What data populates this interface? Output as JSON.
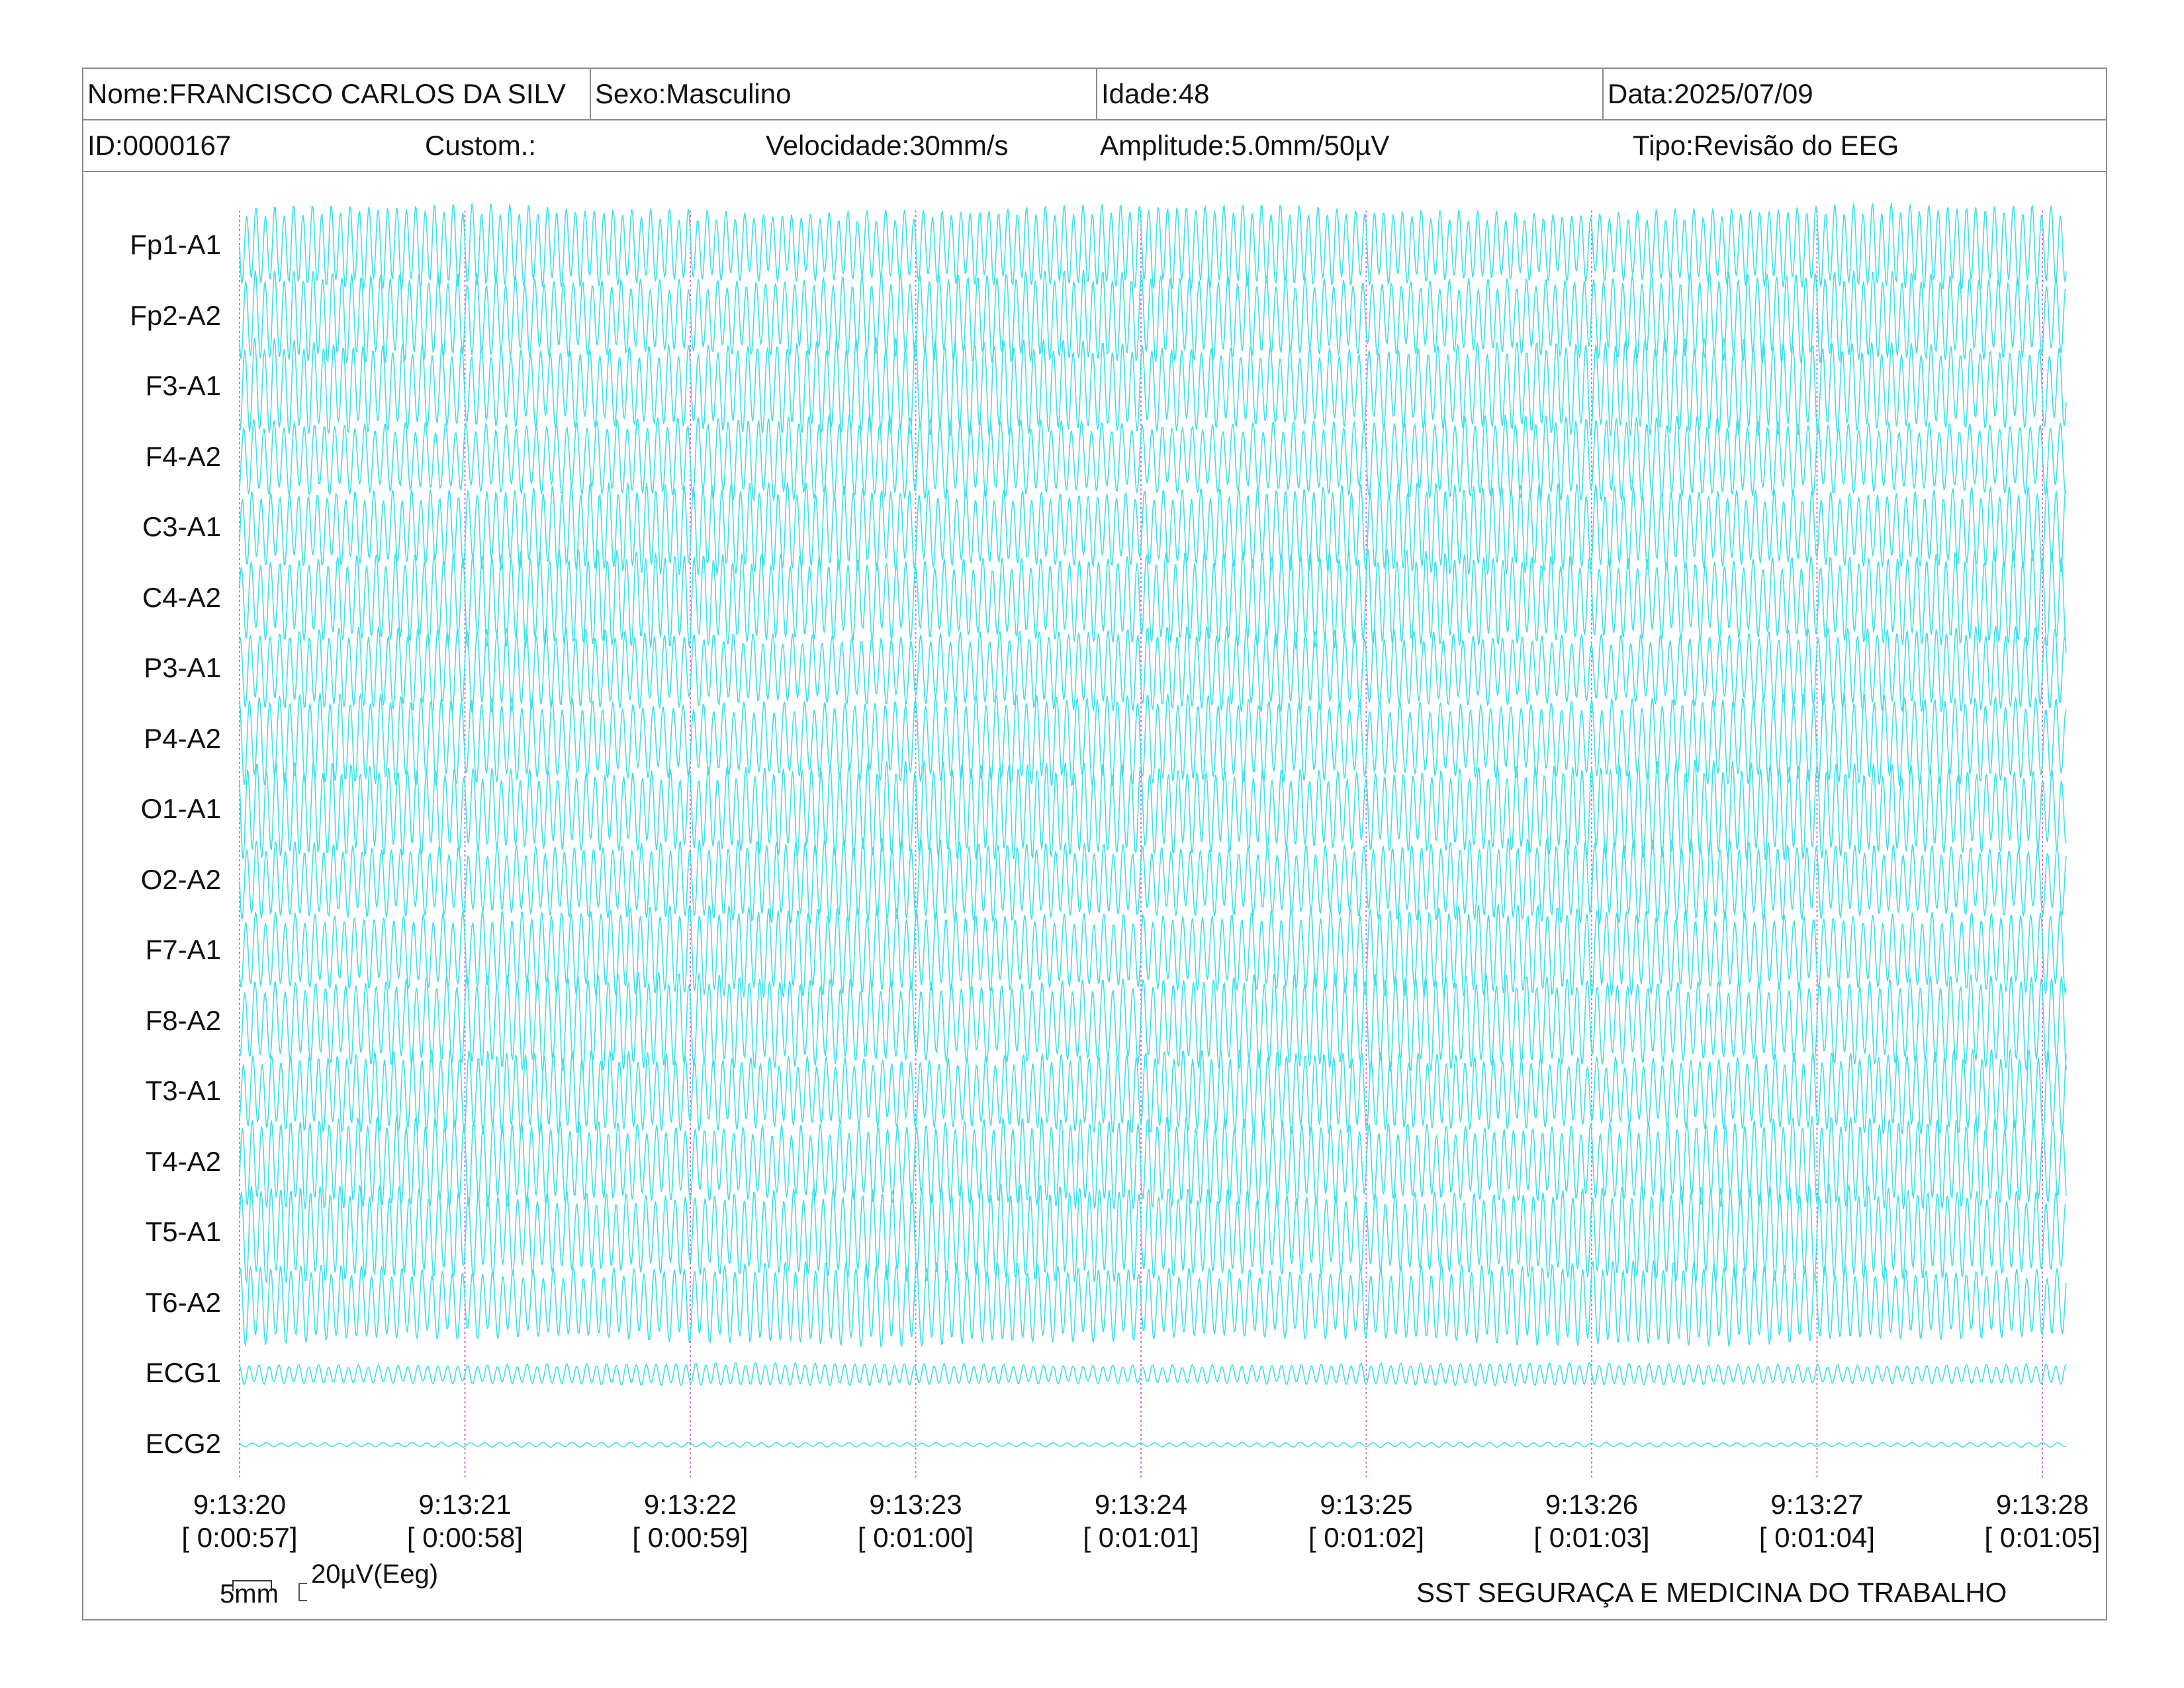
{
  "header": {
    "name": "Nome:FRANCISCO CARLOS DA SILV",
    "sex": "Sexo:Masculino",
    "age": "Idade:48",
    "date": "Data:2025/07/09",
    "id": "ID:0000167",
    "custom": "Custom.:",
    "speed": "Velocidade:30mm/s",
    "amplitude": "Amplitude:5.0mm/50µV",
    "type": "Tipo:Revisão do EEG"
  },
  "channels": [
    "Fp1-A1",
    "Fp2-A2",
    "F3-A1",
    "F4-A2",
    "C3-A1",
    "C4-A2",
    "P3-A1",
    "P4-A2",
    "O1-A1",
    "O2-A2",
    "F7-A1",
    "F8-A2",
    "T3-A1",
    "T4-A2",
    "T5-A1",
    "T6-A2",
    "ECG1",
    "ECG2"
  ],
  "time_marks": [
    {
      "clock": "9:13:20",
      "elapsed": "[ 0:00:57]"
    },
    {
      "clock": "9:13:21",
      "elapsed": "[ 0:00:58]"
    },
    {
      "clock": "9:13:22",
      "elapsed": "[ 0:00:59]"
    },
    {
      "clock": "9:13:23",
      "elapsed": "[ 0:01:00]"
    },
    {
      "clock": "9:13:24",
      "elapsed": "[ 0:01:01]"
    },
    {
      "clock": "9:13:25",
      "elapsed": "[ 0:01:02]"
    },
    {
      "clock": "9:13:26",
      "elapsed": "[ 0:01:03]"
    },
    {
      "clock": "9:13:27",
      "elapsed": "[ 0:01:04]"
    },
    {
      "clock": "9:13:28",
      "elapsed": "[ 0:01:05]"
    }
  ],
  "scale": {
    "time": "5mm",
    "amplitude": "20µV(Eeg)"
  },
  "footer": "SST SEGURAÇA E MEDICINA DO TRABALHO",
  "colors": {
    "trace": "#3fe0e6",
    "marker": "#d36bd6",
    "border": "#8a8a8a"
  }
}
